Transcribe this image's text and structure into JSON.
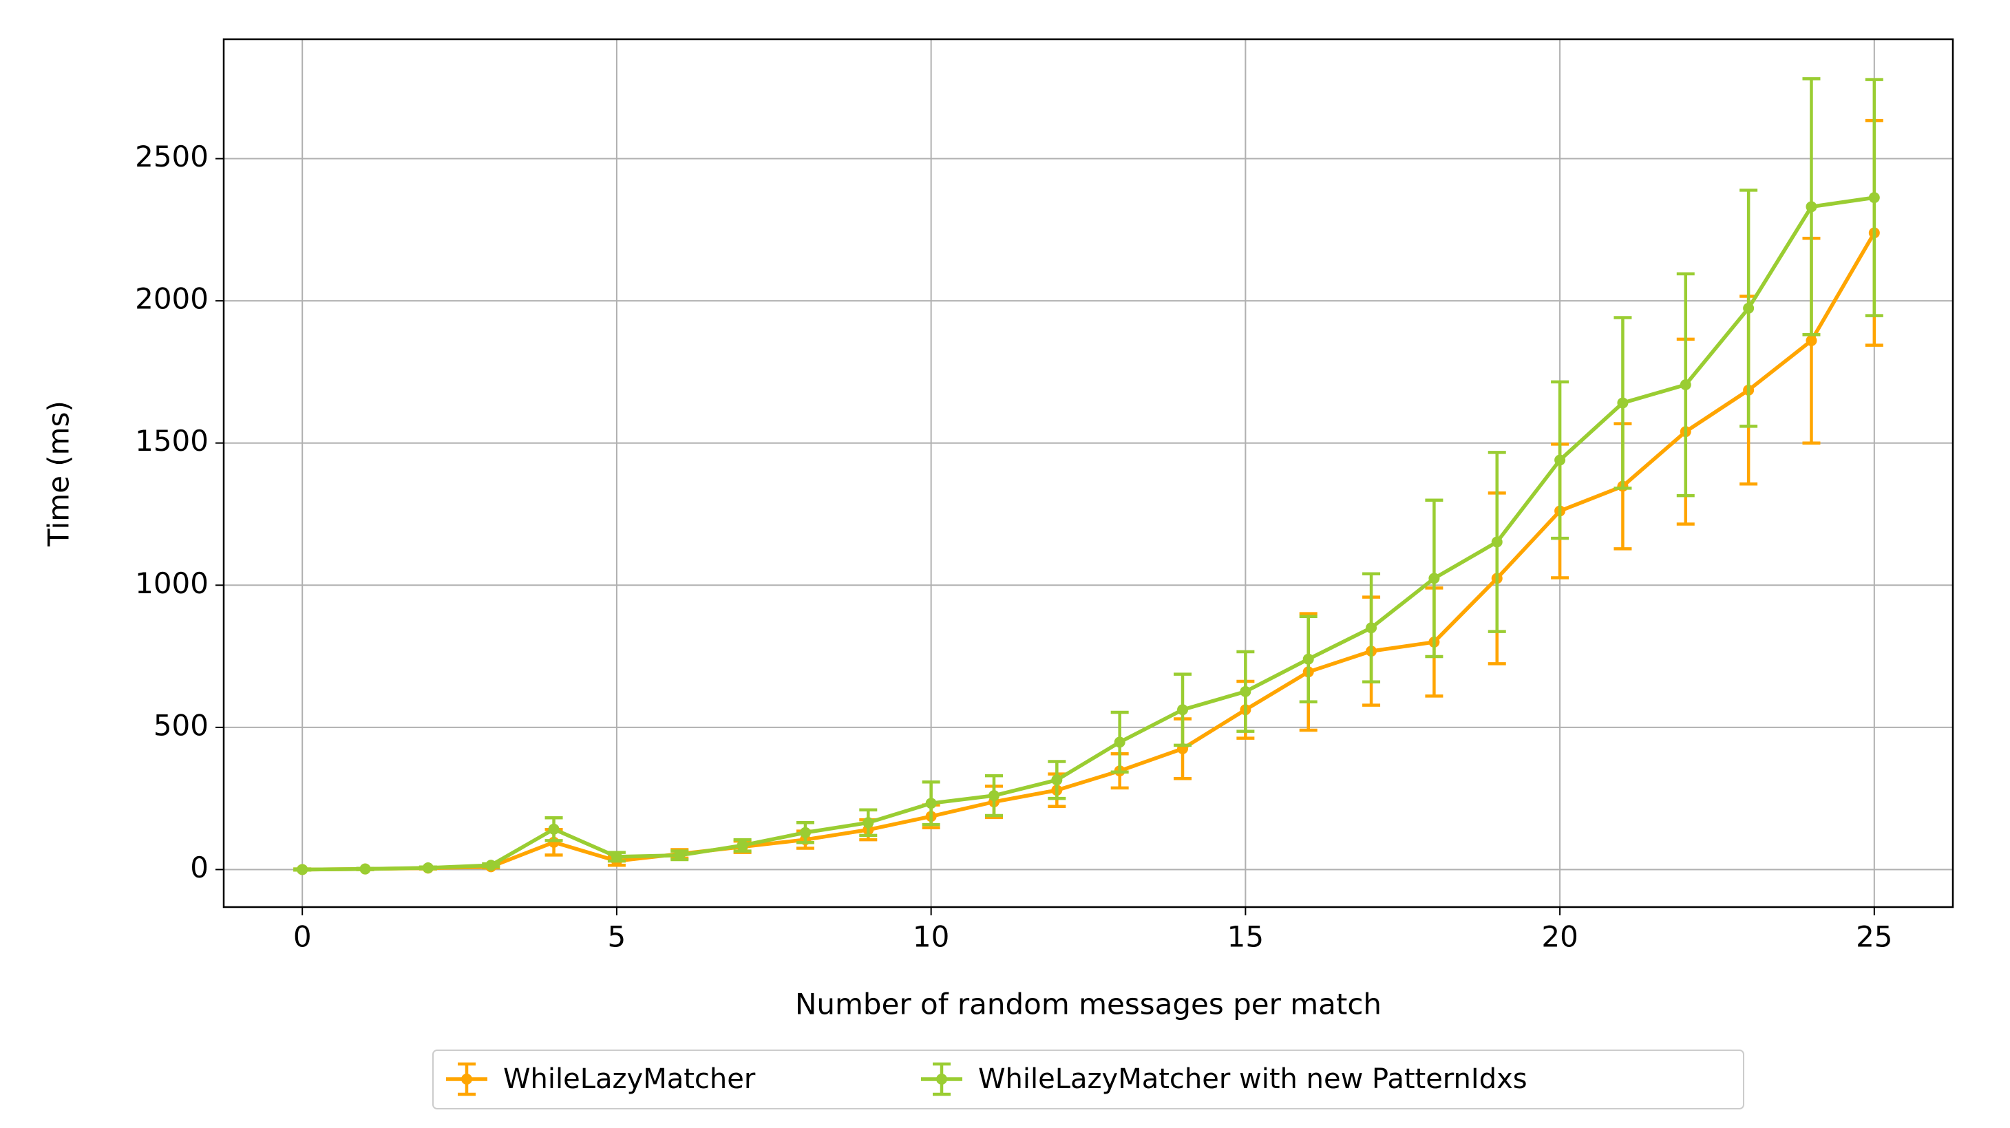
{
  "chart_data": {
    "type": "errorbar-line",
    "x_label": "Number of random messages per match",
    "y_label": "Time (ms)",
    "x": [
      0,
      1,
      2,
      3,
      4,
      5,
      6,
      7,
      8,
      9,
      10,
      11,
      12,
      13,
      14,
      15,
      16,
      17,
      18,
      19,
      20,
      21,
      22,
      23,
      24,
      25
    ],
    "series": [
      {
        "name": "WhileLazyMatcher",
        "color": "#ffa500",
        "values": [
          0,
          2,
          5,
          10,
          96,
          30,
          55,
          80,
          105,
          140,
          187,
          238,
          279,
          347,
          425,
          562,
          695,
          768,
          800,
          1024,
          1261,
          1348,
          1540,
          1686,
          1860,
          2239
        ],
        "errors": [
          2,
          2,
          3,
          4,
          45,
          15,
          15,
          20,
          30,
          35,
          40,
          55,
          57,
          60,
          105,
          100,
          205,
          190,
          190,
          300,
          235,
          220,
          325,
          330,
          360,
          395
        ]
      },
      {
        "name": "WhileLazyMatcher with new PatternIdxs",
        "color": "#9acd32",
        "values": [
          0,
          2,
          6,
          15,
          142,
          45,
          50,
          85,
          130,
          165,
          233,
          260,
          315,
          448,
          562,
          626,
          740,
          850,
          1024,
          1152,
          1440,
          1641,
          1705,
          1974,
          2331,
          2363
        ],
        "errors": [
          2,
          2,
          3,
          5,
          40,
          15,
          15,
          20,
          35,
          45,
          75,
          70,
          65,
          105,
          125,
          140,
          150,
          190,
          275,
          315,
          275,
          300,
          390,
          415,
          450,
          415
        ]
      }
    ],
    "xlim": [
      -1.25,
      26.25
    ],
    "ylim": [
      -132,
      2920
    ],
    "xticks": [
      0,
      5,
      10,
      15,
      20,
      25
    ],
    "yticks": [
      0,
      500,
      1000,
      1500,
      2000,
      2500
    ],
    "grid": true,
    "legend": "below"
  }
}
